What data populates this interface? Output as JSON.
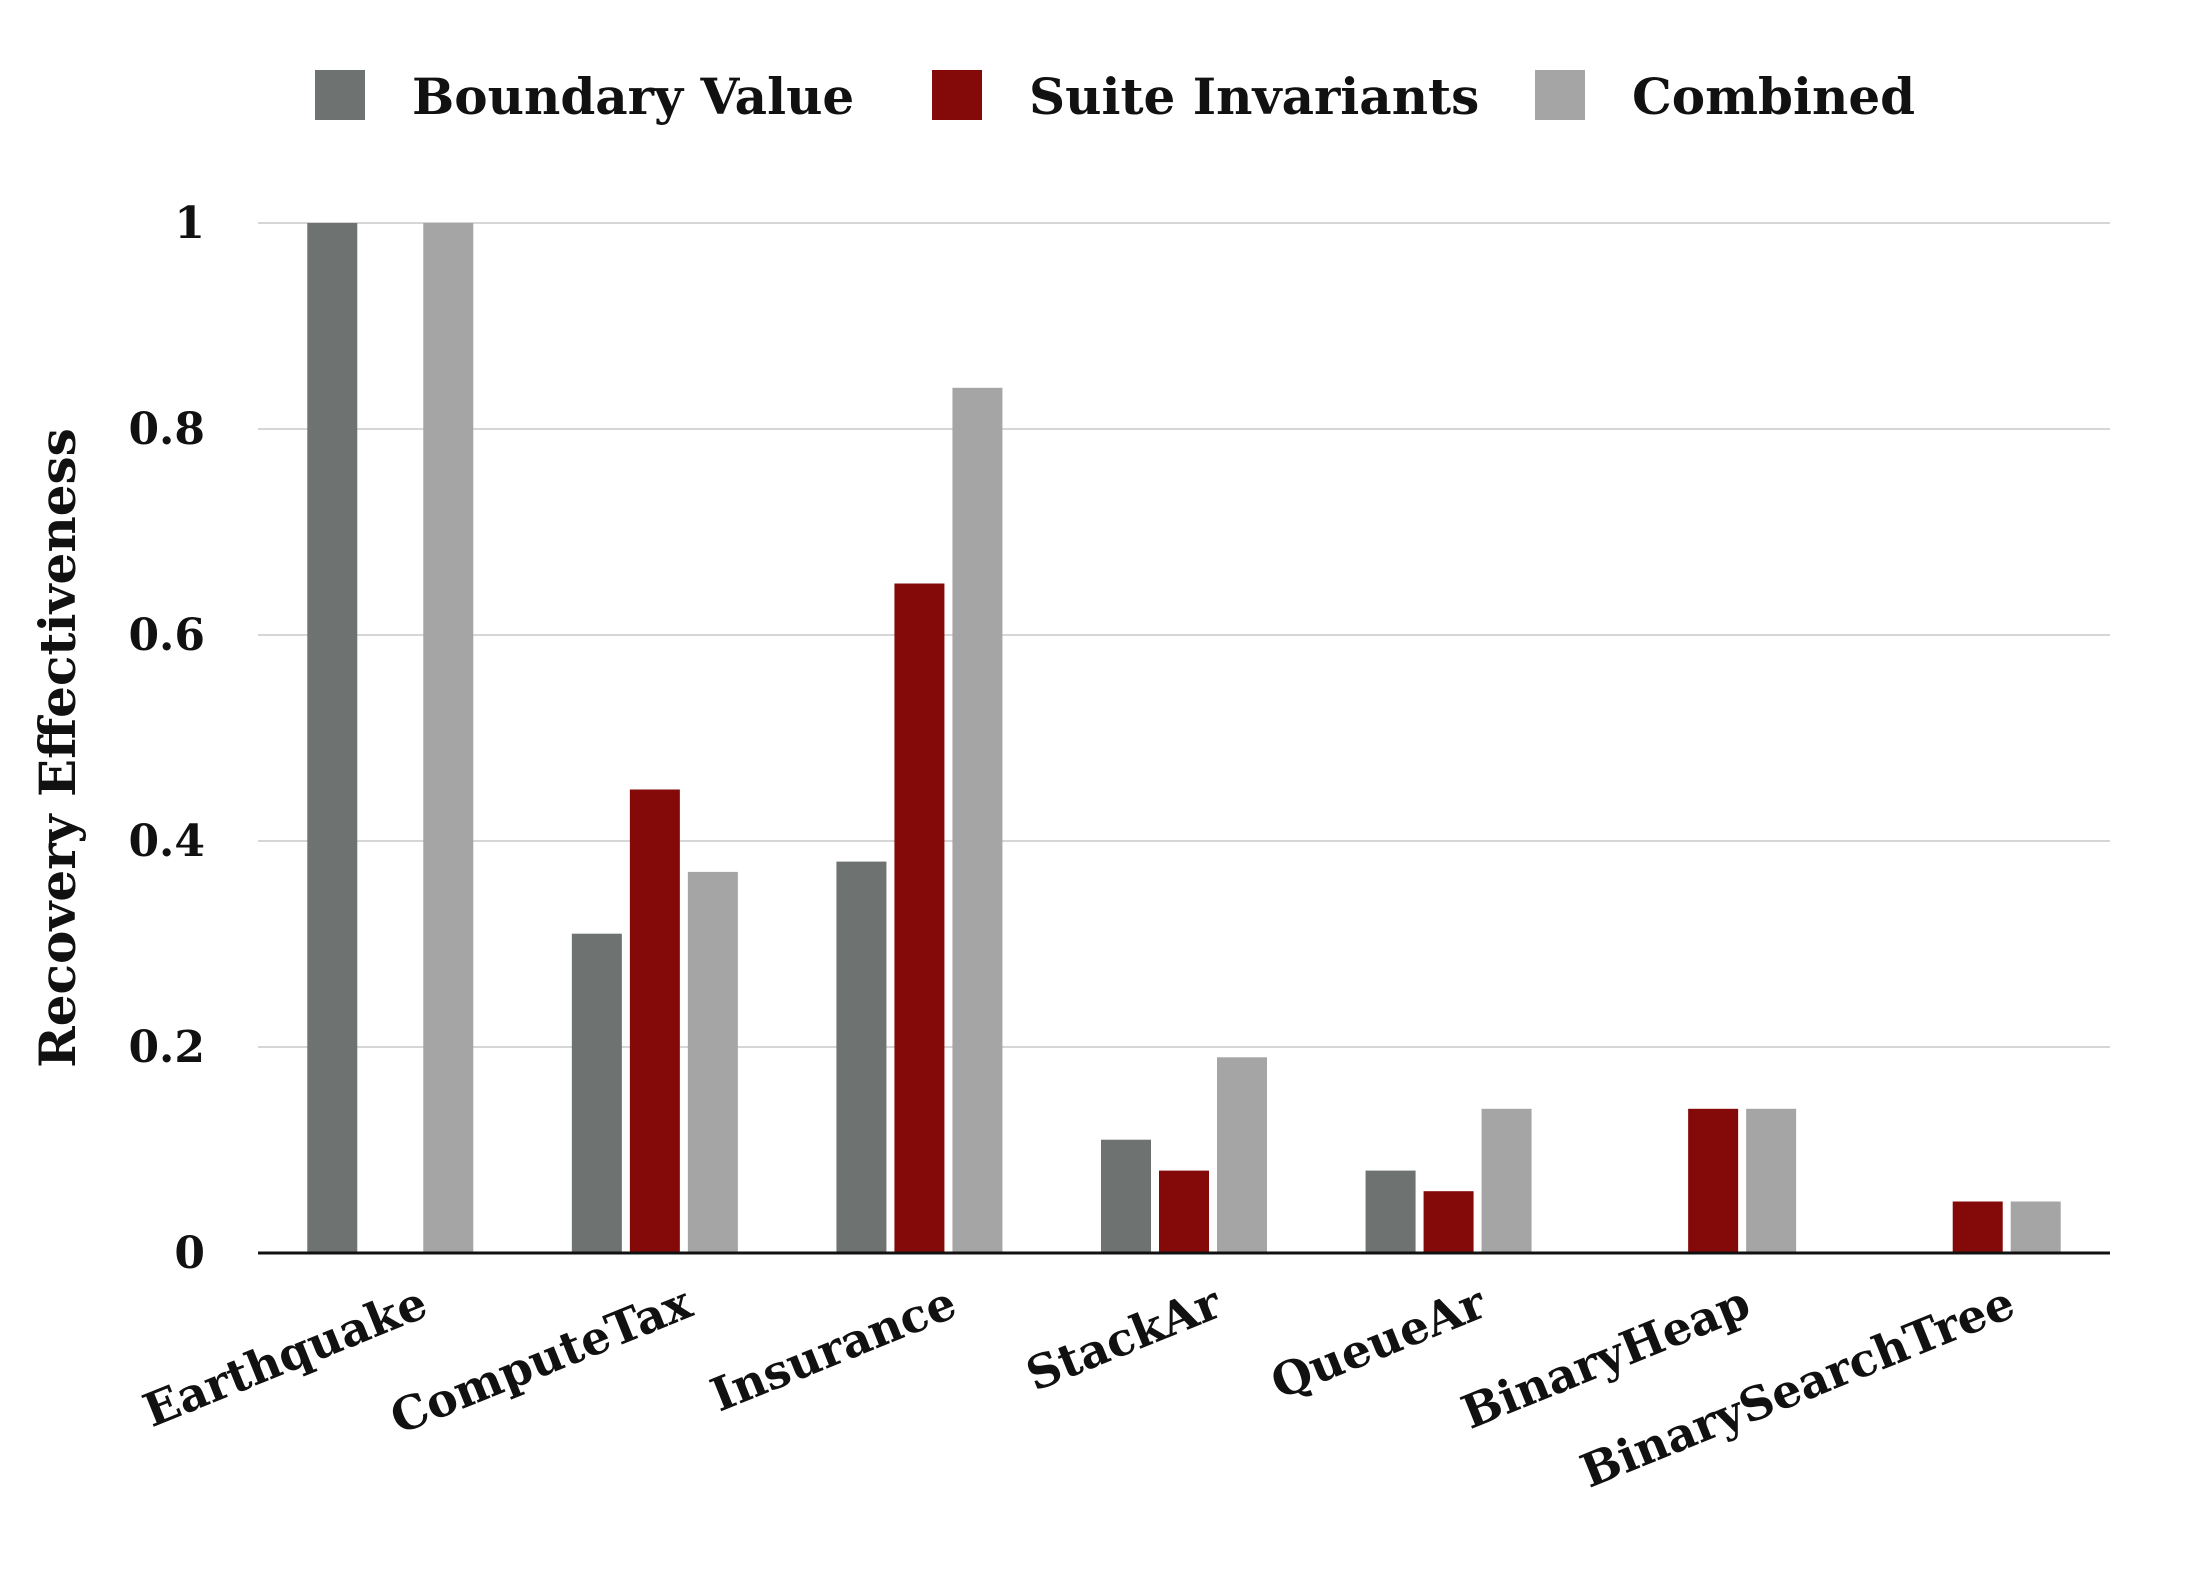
{
  "chart_data": {
    "type": "bar",
    "title": "",
    "xlabel": "",
    "ylabel": "Recovery Effectiveness",
    "ylim": [
      0,
      1
    ],
    "yticks": [
      0,
      0.2,
      0.4,
      0.6,
      0.8,
      1
    ],
    "ytick_labels": [
      "0",
      "0.2",
      "0.4",
      "0.6",
      "0.8",
      "1"
    ],
    "grid": true,
    "legend_position": "top",
    "categories": [
      "Earthquake",
      "ComputeTax",
      "Insurance",
      "StackAr",
      "QueueAr",
      "BinaryHeap",
      "BinarySearchTree"
    ],
    "series": [
      {
        "name": "Boundary Value",
        "color": "#6e7270",
        "values": [
          1.0,
          0.31,
          0.38,
          0.11,
          0.08,
          0,
          0
        ]
      },
      {
        "name": "Suite Invariants",
        "color": "#840909",
        "values": [
          0,
          0.45,
          0.65,
          0.08,
          0.06,
          0.14,
          0.05
        ]
      },
      {
        "name": "Combined",
        "color": "#a5a5a5",
        "values": [
          1.0,
          0.37,
          0.84,
          0.19,
          0.14,
          0.14,
          0.05
        ]
      }
    ]
  }
}
